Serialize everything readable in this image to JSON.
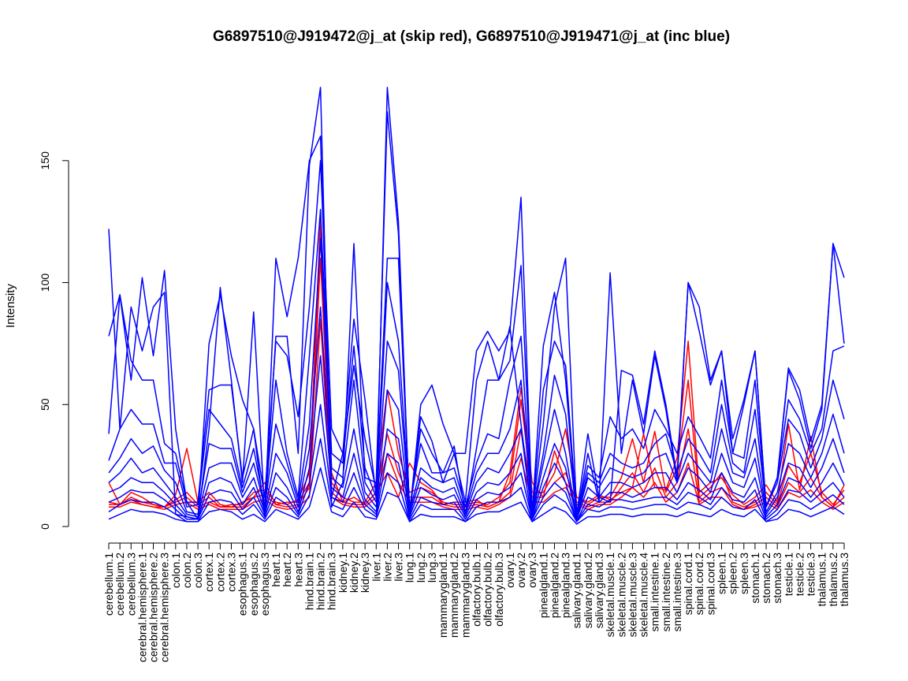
{
  "chart_data": {
    "type": "line",
    "title": "G6897510@J919472@j_at (skip red), G6897510@J919471@j_at (inc blue)",
    "xlabel": "",
    "ylabel": "Intensity",
    "ylim": [
      0,
      180
    ],
    "y_ticks": [
      0,
      50,
      100,
      150
    ],
    "y_tick_labels": [
      "0",
      "50",
      "100",
      "150"
    ],
    "grid": false,
    "legend": "none",
    "categories": [
      "cerebellum.1",
      "cerebellum.2",
      "cerebellum.3",
      "cerebral.hemisphere.1",
      "cerebral.hemisphere.2",
      "cerebral.hemisphere.3",
      "colon.1",
      "colon.2",
      "colon.3",
      "cortex.1",
      "cortex.2",
      "cortex.3",
      "esophagus.1",
      "esophagus.2",
      "esophagus.3",
      "heart.1",
      "heart.2",
      "heart.3",
      "hind.brain.1",
      "hind.brain.2",
      "hind.brain.3",
      "kidney.1",
      "kidney.2",
      "kidney.3",
      "liver.1",
      "liver.2",
      "liver.3",
      "lung.1",
      "lung.2",
      "lung.3",
      "mammarygland.1",
      "mammarygland.2",
      "mammarygland.3",
      "olfactory.bulb.1",
      "olfactory.bulb.2",
      "olfactory.bulb.3",
      "ovary.1",
      "ovary.2",
      "ovary.3",
      "pinealgland.1",
      "pinealgland.2",
      "pinealgland.3",
      "salivary.gland.1",
      "salivary.gland.2",
      "salivary.gland.3",
      "skeletal.muscle.1",
      "skeletal.muscle.2",
      "skeletal.muscle.3",
      "skeletal.muscle.4",
      "small.intestine.1",
      "small.intestine.2",
      "small.intestine.3",
      "spinal.cord.1",
      "spinal.cord.2",
      "spinal.cord.3",
      "spleen.1",
      "spleen.2",
      "spleen.3",
      "stomach.1",
      "stomach.2",
      "stomach.3",
      "testicle.1",
      "testicle.2",
      "testicle.3",
      "thalamus.1",
      "thalamus.2",
      "thalamus.3"
    ],
    "series": [
      {
        "color": "#ff0000",
        "values": [
          18,
          9,
          14,
          12,
          9,
          8,
          13,
          32,
          10,
          14,
          9,
          8,
          10,
          12,
          18,
          9,
          10,
          10,
          18,
          126,
          22,
          10,
          12,
          9,
          14,
          22,
          12,
          26,
          18,
          15,
          9,
          10,
          10,
          11,
          8,
          10,
          22,
          57,
          18,
          12,
          31,
          18,
          12,
          10,
          13,
          11,
          14,
          16,
          38,
          16,
          15,
          28,
          76,
          14,
          18,
          20,
          13,
          9,
          12,
          17,
          10,
          42,
          15,
          37,
          12,
          8,
          17
        ]
      },
      {
        "color": "#ff0000",
        "values": [
          10,
          9,
          12,
          10,
          9,
          8,
          11,
          14,
          9,
          12,
          8,
          9,
          9,
          14,
          15,
          10,
          9,
          11,
          22,
          120,
          18,
          12,
          10,
          10,
          18,
          56,
          30,
          14,
          16,
          14,
          10,
          9,
          9,
          10,
          9,
          12,
          18,
          52,
          14,
          14,
          22,
          40,
          12,
          9,
          12,
          12,
          20,
          36,
          18,
          39,
          14,
          24,
          60,
          12,
          16,
          22,
          10,
          8,
          10,
          14,
          9,
          25,
          18,
          30,
          14,
          9,
          15
        ]
      },
      {
        "color": "#ff0000",
        "values": [
          9,
          9,
          11,
          9,
          8,
          8,
          10,
          12,
          8,
          10,
          8,
          8,
          8,
          12,
          13,
          9,
          8,
          9,
          16,
          110,
          14,
          10,
          9,
          9,
          14,
          38,
          22,
          12,
          12,
          12,
          9,
          8,
          8,
          9,
          8,
          10,
          14,
          40,
          12,
          12,
          18,
          22,
          10,
          8,
          10,
          10,
          16,
          22,
          14,
          24,
          12,
          18,
          40,
          10,
          14,
          16,
          9,
          7,
          9,
          12,
          8,
          18,
          14,
          20,
          12,
          8,
          12
        ]
      },
      {
        "color": "#ff0000",
        "values": [
          8,
          8,
          10,
          9,
          8,
          7,
          9,
          10,
          7,
          9,
          7,
          7,
          7,
          10,
          11,
          8,
          7,
          8,
          12,
          85,
          12,
          9,
          8,
          8,
          12,
          30,
          18,
          10,
          10,
          10,
          8,
          7,
          7,
          8,
          7,
          9,
          12,
          28,
          10,
          10,
          14,
          16,
          9,
          7,
          9,
          9,
          12,
          16,
          12,
          18,
          10,
          14,
          26,
          9,
          12,
          12,
          8,
          7,
          8,
          10,
          7,
          14,
          12,
          15,
          10,
          7,
          10
        ]
      },
      {
        "color": "#0000ff",
        "values": [
          122,
          40,
          90,
          72,
          90,
          96,
          5,
          4,
          3,
          40,
          98,
          60,
          18,
          88,
          5,
          78,
          78,
          30,
          148,
          180,
          8,
          18,
          116,
          20,
          18,
          170,
          120,
          5,
          50,
          58,
          42,
          30,
          30,
          72,
          80,
          72,
          80,
          135,
          5,
          42,
          90,
          110,
          5,
          38,
          12,
          10,
          64,
          62,
          42,
          72,
          50,
          20,
          100,
          90,
          60,
          72,
          36,
          52,
          72,
          8,
          20,
          65,
          56,
          35,
          50,
          116,
          102
        ]
      },
      {
        "color": "#0000ff",
        "values": [
          78,
          95,
          60,
          102,
          70,
          105,
          40,
          10,
          3,
          75,
          95,
          70,
          52,
          40,
          4,
          110,
          86,
          110,
          150,
          160,
          12,
          30,
          85,
          52,
          12,
          180,
          125,
          4,
          45,
          35,
          18,
          30,
          10,
          60,
          76,
          60,
          82,
          42,
          5,
          74,
          96,
          60,
          4,
          30,
          10,
          104,
          30,
          60,
          38,
          70,
          48,
          18,
          100,
          80,
          58,
          72,
          30,
          50,
          72,
          8,
          20,
          64,
          52,
          32,
          48,
          116,
          75
        ]
      },
      {
        "color": "#0000ff",
        "values": [
          38,
          95,
          68,
          60,
          60,
          34,
          30,
          10,
          10,
          56,
          58,
          58,
          20,
          40,
          12,
          76,
          70,
          45,
          90,
          150,
          40,
          30,
          66,
          36,
          15,
          110,
          110,
          6,
          40,
          30,
          22,
          33,
          5,
          32,
          60,
          60,
          68,
          107,
          5,
          56,
          76,
          66,
          5,
          25,
          20,
          45,
          36,
          40,
          32,
          48,
          40,
          30,
          45,
          37,
          28,
          60,
          30,
          28,
          60,
          8,
          20,
          52,
          44,
          30,
          40,
          72,
          74
        ]
      },
      {
        "color": "#0000ff",
        "values": [
          27,
          40,
          48,
          42,
          42,
          26,
          26,
          8,
          9,
          48,
          42,
          36,
          16,
          32,
          8,
          60,
          30,
          12,
          70,
          130,
          30,
          26,
          74,
          24,
          12,
          100,
          76,
          8,
          34,
          22,
          22,
          24,
          8,
          26,
          38,
          36,
          60,
          78,
          5,
          30,
          62,
          46,
          4,
          22,
          18,
          30,
          26,
          24,
          26,
          34,
          38,
          22,
          36,
          30,
          22,
          50,
          26,
          22,
          48,
          8,
          18,
          44,
          38,
          24,
          36,
          60,
          44
        ]
      },
      {
        "color": "#0000ff",
        "values": [
          22,
          28,
          36,
          30,
          33,
          23,
          18,
          6,
          5,
          34,
          32,
          32,
          14,
          26,
          8,
          42,
          26,
          10,
          42,
          118,
          24,
          20,
          60,
          18,
          10,
          76,
          64,
          6,
          24,
          20,
          18,
          20,
          6,
          22,
          30,
          30,
          40,
          60,
          4,
          26,
          48,
          30,
          3,
          20,
          16,
          24,
          22,
          20,
          22,
          28,
          30,
          18,
          30,
          24,
          18,
          40,
          22,
          20,
          36,
          6,
          14,
          34,
          30,
          20,
          30,
          46,
          30
        ]
      },
      {
        "color": "#0000ff",
        "values": [
          18,
          22,
          28,
          22,
          24,
          18,
          12,
          5,
          4,
          24,
          26,
          26,
          12,
          20,
          6,
          30,
          22,
          8,
          32,
          90,
          20,
          16,
          40,
          14,
          8,
          56,
          48,
          5,
          20,
          16,
          14,
          16,
          5,
          18,
          24,
          22,
          30,
          40,
          4,
          20,
          34,
          24,
          3,
          16,
          12,
          18,
          18,
          16,
          18,
          22,
          22,
          14,
          24,
          20,
          14,
          30,
          18,
          16,
          28,
          5,
          12,
          26,
          24,
          16,
          24,
          36,
          22
        ]
      },
      {
        "color": "#0000ff",
        "values": [
          14,
          16,
          20,
          18,
          18,
          14,
          9,
          4,
          3,
          18,
          20,
          18,
          9,
          16,
          5,
          22,
          16,
          6,
          24,
          70,
          16,
          12,
          30,
          11,
          6,
          40,
          36,
          4,
          16,
          13,
          11,
          13,
          4,
          14,
          18,
          17,
          22,
          30,
          3,
          16,
          26,
          18,
          2,
          12,
          10,
          14,
          14,
          12,
          14,
          16,
          16,
          11,
          18,
          15,
          11,
          22,
          14,
          12,
          20,
          4,
          9,
          20,
          18,
          12,
          18,
          26,
          17
        ]
      },
      {
        "color": "#0000ff",
        "values": [
          10,
          12,
          15,
          14,
          14,
          11,
          7,
          3,
          3,
          13,
          15,
          14,
          7,
          12,
          4,
          16,
          12,
          5,
          18,
          50,
          12,
          10,
          22,
          9,
          5,
          30,
          26,
          3,
          12,
          10,
          9,
          10,
          3,
          11,
          14,
          13,
          16,
          22,
          3,
          12,
          18,
          14,
          2,
          9,
          8,
          11,
          11,
          10,
          11,
          12,
          12,
          9,
          14,
          12,
          9,
          16,
          11,
          10,
          15,
          3,
          7,
          15,
          14,
          10,
          14,
          18,
          12
        ]
      },
      {
        "color": "#0000ff",
        "values": [
          6,
          9,
          11,
          10,
          10,
          8,
          5,
          2,
          2,
          10,
          11,
          10,
          5,
          9,
          3,
          12,
          9,
          4,
          13,
          36,
          9,
          7,
          16,
          7,
          4,
          22,
          18,
          2,
          9,
          7,
          7,
          7,
          2,
          8,
          10,
          10,
          12,
          16,
          2,
          9,
          13,
          10,
          2,
          7,
          6,
          8,
          8,
          7,
          8,
          9,
          9,
          7,
          10,
          9,
          7,
          12,
          8,
          7,
          11,
          2,
          5,
          11,
          10,
          7,
          10,
          13,
          9
        ]
      },
      {
        "color": "#0000ff",
        "values": [
          3,
          5,
          7,
          6,
          6,
          5,
          3,
          2,
          2,
          6,
          7,
          6,
          3,
          5,
          2,
          7,
          5,
          3,
          8,
          24,
          6,
          4,
          10,
          4,
          3,
          14,
          12,
          2,
          5,
          4,
          4,
          4,
          2,
          5,
          6,
          6,
          8,
          10,
          2,
          5,
          8,
          6,
          1,
          4,
          4,
          5,
          5,
          4,
          5,
          5,
          5,
          4,
          6,
          5,
          4,
          7,
          5,
          4,
          7,
          2,
          3,
          7,
          6,
          4,
          6,
          8,
          5
        ]
      }
    ]
  }
}
